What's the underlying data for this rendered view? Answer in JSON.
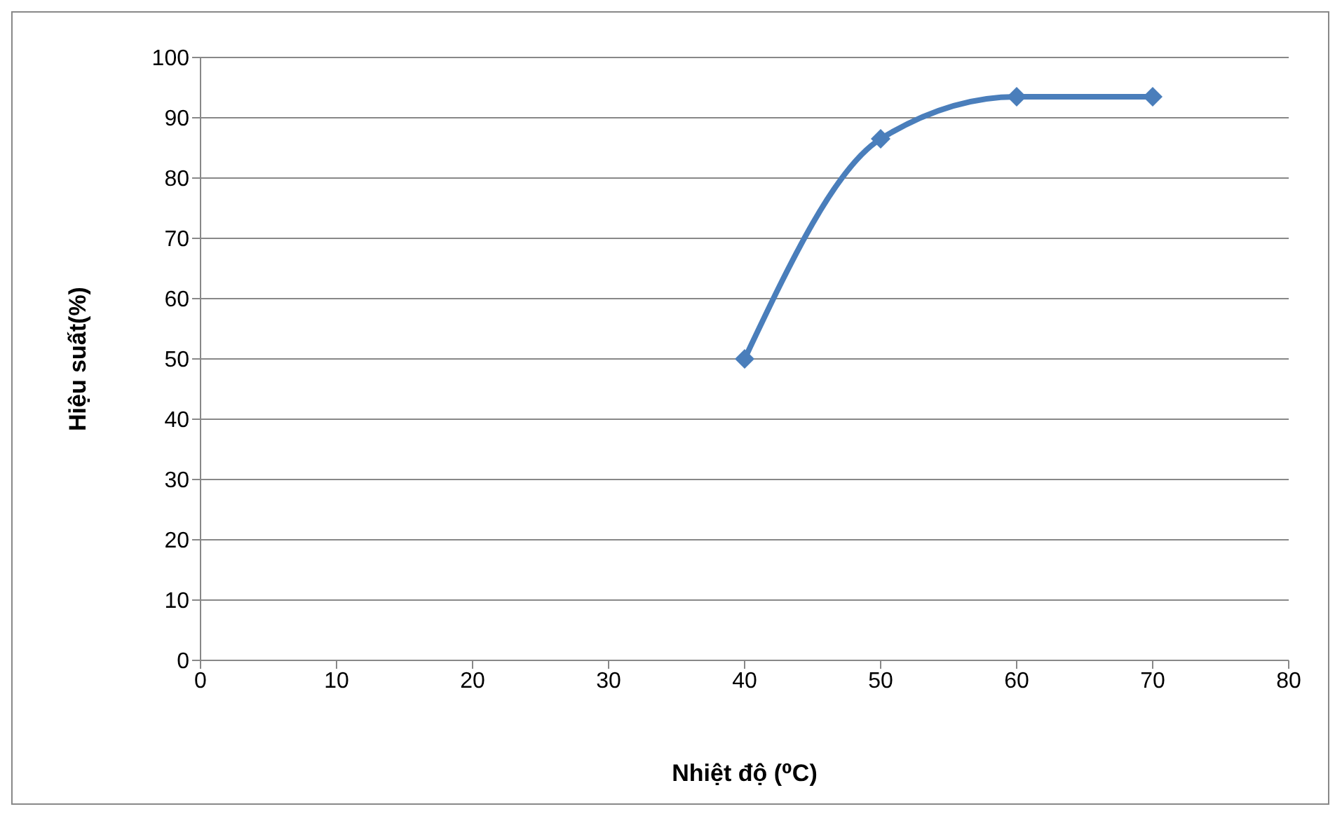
{
  "chart_data": {
    "type": "line",
    "xlabel": "Nhiệt độ (⁰C)",
    "ylabel": "Hiệu suất(%)",
    "x": [
      40,
      50,
      60,
      70
    ],
    "series": [
      {
        "color": "#4a7ebb",
        "values": [
          50,
          86.5,
          93.5,
          93.5
        ]
      }
    ],
    "xlim": [
      0,
      80
    ],
    "xticks": [
      0,
      10,
      20,
      30,
      40,
      50,
      60,
      70,
      80
    ],
    "ylim": [
      0,
      100
    ],
    "yticks": [
      0,
      10,
      20,
      30,
      40,
      50,
      60,
      70,
      80,
      90,
      100
    ],
    "grid": "y",
    "legend": false,
    "marker": "diamond",
    "line_style": "solid"
  }
}
